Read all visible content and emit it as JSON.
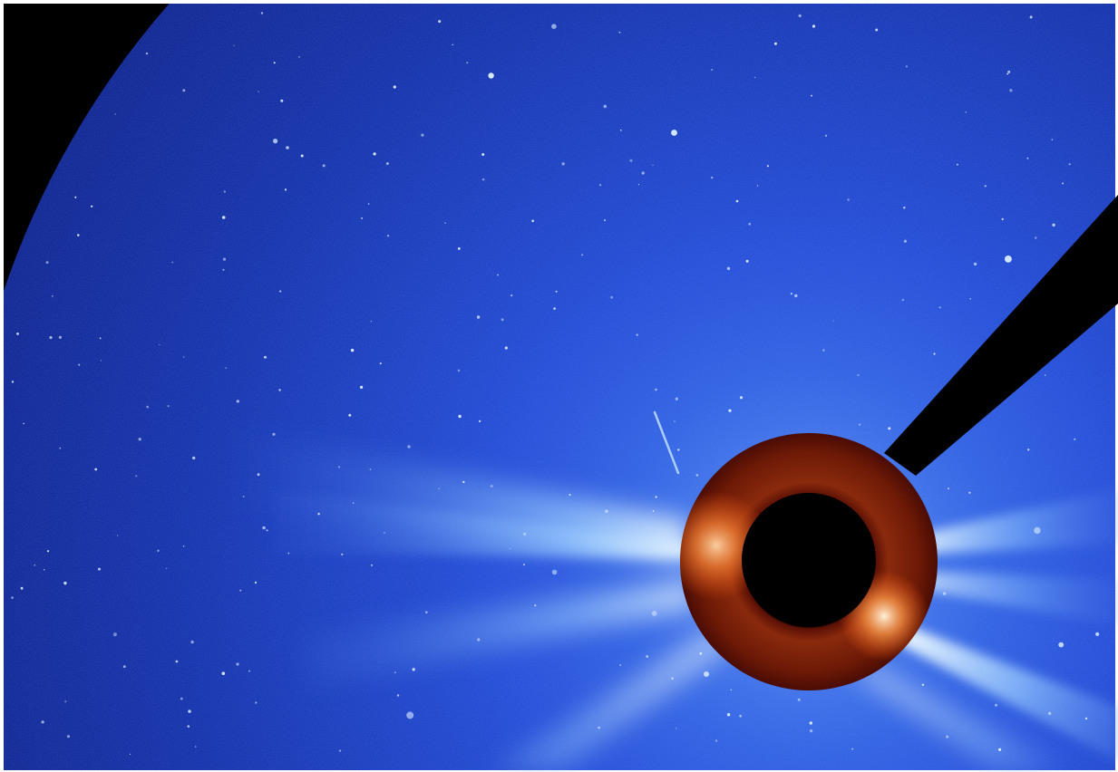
{
  "image": {
    "subject": "coronagraph",
    "colors": {
      "sky_deep": "#071a8c",
      "sky_mid": "#0b2fc4",
      "sky_light": "#2e5fe8",
      "streamer": "#9fd2ff",
      "streamer_core": "#e6f6ff",
      "occulter_ring": "#7a1a08",
      "occulter_ring_bright": "#ff8a3a",
      "occulter_disk": "#000000",
      "mask": "#000000",
      "star": "#d8ecff",
      "frame": "#ffffff"
    },
    "icons": {
      "occulter": "occulter-disk-icon",
      "pylon": "pylon-shadow-icon",
      "comet": "comet-streak-icon"
    }
  }
}
